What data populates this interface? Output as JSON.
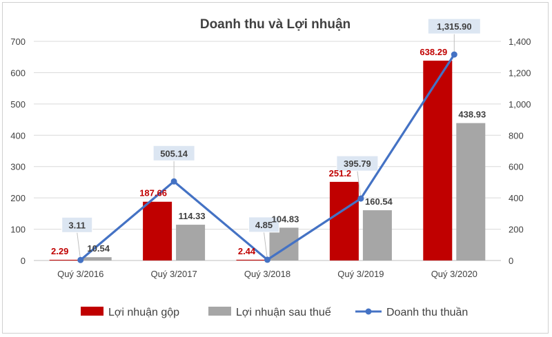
{
  "chart_data": {
    "type": "bar",
    "title": "Doanh thu và Lợi nhuận",
    "categories": [
      "Quý 3/2016",
      "Quý 3/2017",
      "Quý 3/2018",
      "Quý 3/2019",
      "Quý 3/2020"
    ],
    "y_left": {
      "min": 0,
      "max": 700,
      "ticks": [
        "0",
        "100",
        "200",
        "300",
        "400",
        "500",
        "600",
        "700"
      ]
    },
    "y_right": {
      "min": 0,
      "max": 1400,
      "ticks": [
        "0",
        "200",
        "400",
        "600",
        "800",
        "1,000",
        "1,200",
        "1,400"
      ]
    },
    "grid": "horizontal",
    "legend_position": "bottom",
    "series": [
      {
        "name": "Lợi nhuận gộp",
        "type": "bar",
        "axis": "left",
        "color": "#c00000",
        "label_color": "#c00000",
        "values": [
          2.29,
          187.66,
          2.44,
          251.2,
          638.29
        ],
        "labels": [
          "2.29",
          "187.66",
          "2.44",
          "251.2",
          "638.29"
        ]
      },
      {
        "name": "Lợi nhuận sau thuế",
        "type": "bar",
        "axis": "left",
        "color": "#a6a6a6",
        "label_color": "#404040",
        "values": [
          10.54,
          114.33,
          104.83,
          160.54,
          438.93
        ],
        "labels": [
          "10.54",
          "114.33",
          "104.83",
          "160.54",
          "438.93"
        ]
      },
      {
        "name": "Doanh thu thuần",
        "type": "line",
        "axis": "right",
        "color": "#4472c4",
        "values": [
          3.11,
          505.14,
          4.85,
          395.79,
          1315.9
        ],
        "labels": [
          "3.11",
          "505.14",
          "4.85",
          "395.79",
          "1,315.90"
        ]
      }
    ]
  }
}
